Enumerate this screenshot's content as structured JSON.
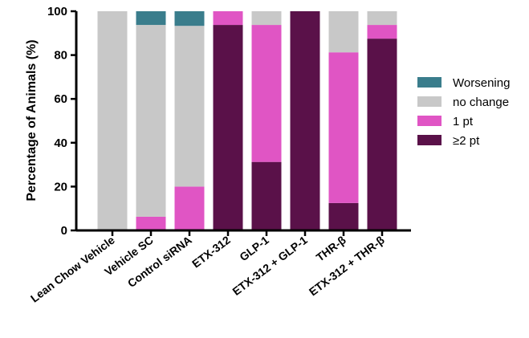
{
  "chart_data": {
    "type": "bar",
    "stacked": true,
    "ylabel": "Percentage of Animals (%)",
    "xlabel": "",
    "title": "",
    "ylim": [
      0,
      100
    ],
    "yticks": [
      "0",
      "20",
      "40",
      "60",
      "80",
      "100"
    ],
    "categories": [
      "Lean Chow Vehicle",
      "Vehicle SC",
      "Control siRNA",
      "ETX-312",
      "GLP-1",
      "ETX-312 + GLP-1",
      "THR-β",
      "ETX-312 + THR-β"
    ],
    "series": [
      {
        "name": "≥2 pt",
        "color": "#5a1149",
        "values": [
          0,
          0,
          0,
          93.75,
          31.25,
          100,
          12.5,
          87.5
        ]
      },
      {
        "name": "1 pt",
        "color": "#e055c4",
        "values": [
          0,
          6.25,
          20,
          6.25,
          62.5,
          0,
          68.75,
          6.25
        ]
      },
      {
        "name": "no change",
        "color": "#c8c8c8",
        "values": [
          100,
          87.5,
          73.33,
          0,
          6.25,
          0,
          18.75,
          6.25
        ]
      },
      {
        "name": "Worsening",
        "color": "#3a7d8c",
        "values": [
          0,
          6.25,
          6.67,
          0,
          0,
          0,
          0,
          0
        ]
      }
    ],
    "legend_order": [
      "Worsening",
      "no change",
      "1 pt",
      "≥2 pt"
    ],
    "legend_position": "right",
    "grid": false
  }
}
